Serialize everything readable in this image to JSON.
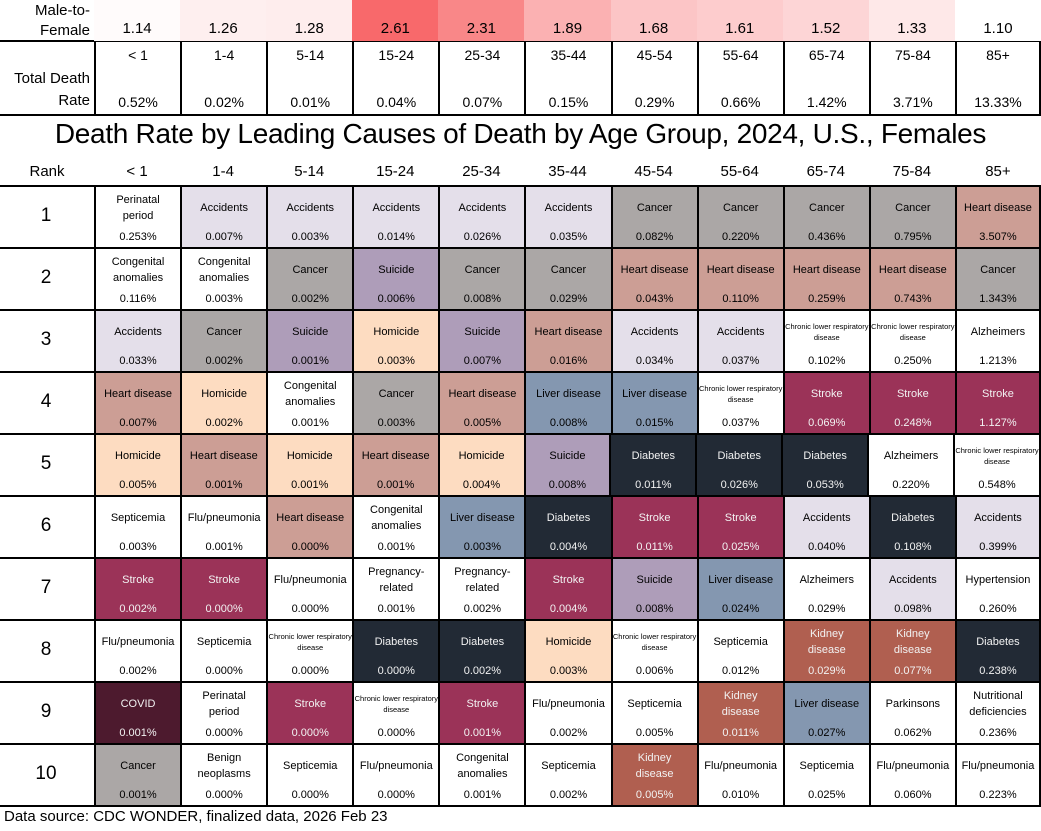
{
  "title": "Death Rate by Leading Causes of Death by Age Group, 2024, U.S., Females",
  "source": "Data source: CDC WONDER, finalized data, 2026 Feb 23",
  "rank_label": "Rank",
  "ratio_label_1": "Male-to-",
  "ratio_label_2": "Female",
  "total_label_1": "Total Death",
  "total_label_2": "Rate",
  "ratio_color_low": "#ffffff",
  "ratio_color_high": "#f8696b",
  "chart_data": {
    "type": "table",
    "title": "Death Rate by Leading Causes of Death by Age Group, 2024, U.S., Females",
    "age_groups": [
      "< 1",
      "1-4",
      "5-14",
      "15-24",
      "25-34",
      "35-44",
      "45-54",
      "55-64",
      "65-74",
      "75-84",
      "85+"
    ],
    "male_to_female": [
      "1.14",
      "1.26",
      "1.28",
      "2.61",
      "2.31",
      "1.89",
      "1.68",
      "1.61",
      "1.52",
      "1.33",
      "1.10"
    ],
    "total_death_rate": [
      "0.52%",
      "0.02%",
      "0.01%",
      "0.04%",
      "0.07%",
      "0.15%",
      "0.29%",
      "0.66%",
      "1.42%",
      "3.71%",
      "13.33%"
    ],
    "cause_colors": {
      "Accidents": "#e4dfea",
      "Cancer": "#aba7a6",
      "Heart disease": "#cc9e95",
      "Suicide": "#ae9db9",
      "Homicide": "#fddcc1",
      "Liver disease": "#8497b0",
      "Diabetes": "#222a35",
      "Stroke": "#9b3358",
      "COVID": "#4d1a2e",
      "Kidney disease": "#b05f50"
    },
    "light_text_causes": [
      "Diabetes",
      "Stroke",
      "COVID",
      "Kidney disease"
    ],
    "ranks": [
      {
        "rank": "1",
        "cells": [
          [
            "Perinatal period",
            "0.253%"
          ],
          [
            "Accidents",
            "0.007%"
          ],
          [
            "Accidents",
            "0.003%"
          ],
          [
            "Accidents",
            "0.014%"
          ],
          [
            "Accidents",
            "0.026%"
          ],
          [
            "Accidents",
            "0.035%"
          ],
          [
            "Cancer",
            "0.082%"
          ],
          [
            "Cancer",
            "0.220%"
          ],
          [
            "Cancer",
            "0.436%"
          ],
          [
            "Cancer",
            "0.795%"
          ],
          [
            "Heart disease",
            "3.507%"
          ]
        ]
      },
      {
        "rank": "2",
        "cells": [
          [
            "Congenital anomalies",
            "0.116%"
          ],
          [
            "Congenital anomalies",
            "0.003%"
          ],
          [
            "Cancer",
            "0.002%"
          ],
          [
            "Suicide",
            "0.006%"
          ],
          [
            "Cancer",
            "0.008%"
          ],
          [
            "Cancer",
            "0.029%"
          ],
          [
            "Heart disease",
            "0.043%"
          ],
          [
            "Heart disease",
            "0.110%"
          ],
          [
            "Heart disease",
            "0.259%"
          ],
          [
            "Heart disease",
            "0.743%"
          ],
          [
            "Cancer",
            "1.343%"
          ]
        ]
      },
      {
        "rank": "3",
        "cells": [
          [
            "Accidents",
            "0.033%"
          ],
          [
            "Cancer",
            "0.002%"
          ],
          [
            "Suicide",
            "0.001%"
          ],
          [
            "Homicide",
            "0.003%"
          ],
          [
            "Suicide",
            "0.007%"
          ],
          [
            "Heart disease",
            "0.016%"
          ],
          [
            "Accidents",
            "0.034%"
          ],
          [
            "Accidents",
            "0.037%"
          ],
          [
            "Chronic lower respiratory disease",
            "0.102%"
          ],
          [
            "Chronic lower respiratory disease",
            "0.250%"
          ],
          [
            "Alzheimers",
            "1.213%"
          ]
        ]
      },
      {
        "rank": "4",
        "cells": [
          [
            "Heart disease",
            "0.007%"
          ],
          [
            "Homicide",
            "0.002%"
          ],
          [
            "Congenital anomalies",
            "0.001%"
          ],
          [
            "Cancer",
            "0.003%"
          ],
          [
            "Heart disease",
            "0.005%"
          ],
          [
            "Liver disease",
            "0.008%"
          ],
          [
            "Liver disease",
            "0.015%"
          ],
          [
            "Chronic lower respiratory disease",
            "0.037%"
          ],
          [
            "Stroke",
            "0.069%"
          ],
          [
            "Stroke",
            "0.248%"
          ],
          [
            "Stroke",
            "1.127%"
          ]
        ]
      },
      {
        "rank": "5",
        "cells": [
          [
            "Homicide",
            "0.005%"
          ],
          [
            "Heart disease",
            "0.001%"
          ],
          [
            "Homicide",
            "0.001%"
          ],
          [
            "Heart disease",
            "0.001%"
          ],
          [
            "Homicide",
            "0.004%"
          ],
          [
            "Suicide",
            "0.008%"
          ],
          [
            "Diabetes",
            "0.011%"
          ],
          [
            "Diabetes",
            "0.026%"
          ],
          [
            "Diabetes",
            "0.053%"
          ],
          [
            "Alzheimers",
            "0.220%"
          ],
          [
            "Chronic lower respiratory disease",
            "0.548%"
          ]
        ]
      },
      {
        "rank": "6",
        "cells": [
          [
            "Septicemia",
            "0.003%"
          ],
          [
            "Flu/pneumonia",
            "0.001%"
          ],
          [
            "Heart disease",
            "0.000%"
          ],
          [
            "Congenital anomalies",
            "0.001%"
          ],
          [
            "Liver disease",
            "0.003%"
          ],
          [
            "Diabetes",
            "0.004%"
          ],
          [
            "Stroke",
            "0.011%"
          ],
          [
            "Stroke",
            "0.025%"
          ],
          [
            "Accidents",
            "0.040%"
          ],
          [
            "Diabetes",
            "0.108%"
          ],
          [
            "Accidents",
            "0.399%"
          ]
        ]
      },
      {
        "rank": "7",
        "cells": [
          [
            "Stroke",
            "0.002%"
          ],
          [
            "Stroke",
            "0.000%"
          ],
          [
            "Flu/pneumonia",
            "0.000%"
          ],
          [
            "Pregnancy-related",
            "0.001%"
          ],
          [
            "Pregnancy-related",
            "0.002%"
          ],
          [
            "Stroke",
            "0.004%"
          ],
          [
            "Suicide",
            "0.008%"
          ],
          [
            "Liver disease",
            "0.024%"
          ],
          [
            "Alzheimers",
            "0.029%"
          ],
          [
            "Accidents",
            "0.098%"
          ],
          [
            "Hypertension",
            "0.260%"
          ]
        ]
      },
      {
        "rank": "8",
        "cells": [
          [
            "Flu/pneumonia",
            "0.002%"
          ],
          [
            "Septicemia",
            "0.000%"
          ],
          [
            "Chronic lower respiratory disease",
            "0.000%"
          ],
          [
            "Diabetes",
            "0.000%"
          ],
          [
            "Diabetes",
            "0.002%"
          ],
          [
            "Homicide",
            "0.003%"
          ],
          [
            "Chronic lower respiratory disease",
            "0.006%"
          ],
          [
            "Septicemia",
            "0.012%"
          ],
          [
            "Kidney disease",
            "0.029%"
          ],
          [
            "Kidney disease",
            "0.077%"
          ],
          [
            "Diabetes",
            "0.238%"
          ]
        ]
      },
      {
        "rank": "9",
        "cells": [
          [
            "COVID",
            "0.001%"
          ],
          [
            "Perinatal period",
            "0.000%"
          ],
          [
            "Stroke",
            "0.000%"
          ],
          [
            "Chronic lower respiratory disease",
            "0.000%"
          ],
          [
            "Stroke",
            "0.001%"
          ],
          [
            "Flu/pneumonia",
            "0.002%"
          ],
          [
            "Septicemia",
            "0.005%"
          ],
          [
            "Kidney disease",
            "0.011%"
          ],
          [
            "Liver disease",
            "0.027%"
          ],
          [
            "Parkinsons",
            "0.062%"
          ],
          [
            "Nutritional deficiencies",
            "0.236%"
          ]
        ]
      },
      {
        "rank": "10",
        "cells": [
          [
            "Cancer",
            "0.001%"
          ],
          [
            "Benign neoplasms",
            "0.000%"
          ],
          [
            "Septicemia",
            "0.000%"
          ],
          [
            "Flu/pneumonia",
            "0.000%"
          ],
          [
            "Congenital anomalies",
            "0.001%"
          ],
          [
            "Septicemia",
            "0.002%"
          ],
          [
            "Kidney disease",
            "0.005%"
          ],
          [
            "Flu/pneumonia",
            "0.010%"
          ],
          [
            "Septicemia",
            "0.025%"
          ],
          [
            "Flu/pneumonia",
            "0.060%"
          ],
          [
            "Flu/pneumonia",
            "0.223%"
          ]
        ]
      }
    ]
  }
}
